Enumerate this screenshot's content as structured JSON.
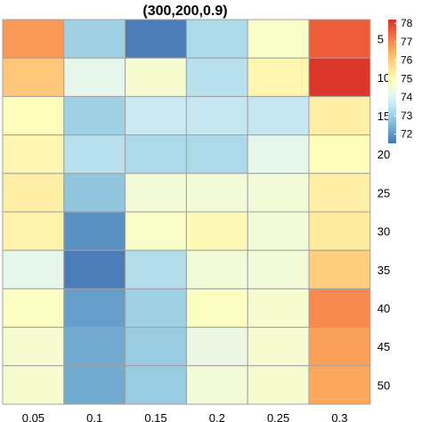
{
  "chart_data": {
    "type": "heatmap",
    "title": "(300,200,0.9)",
    "xlabel": "",
    "ylabel": "",
    "columns": [
      "0.05",
      "0.1",
      "0.15",
      "0.2",
      "0.25",
      "0.3"
    ],
    "rows": [
      "5",
      "10",
      "15",
      "20",
      "25",
      "30",
      "35",
      "40",
      "45",
      "50"
    ],
    "values": [
      [
        76.8,
        73.0,
        71.6,
        73.2,
        74.7,
        77.6
      ],
      [
        76.1,
        74.2,
        74.6,
        73.4,
        75.1,
        78.1
      ],
      [
        74.9,
        73.0,
        73.7,
        73.6,
        73.6,
        75.3
      ],
      [
        75.1,
        73.4,
        73.2,
        73.2,
        74.2,
        74.9
      ],
      [
        75.3,
        72.8,
        74.5,
        74.5,
        74.5,
        75.3
      ],
      [
        75.2,
        71.9,
        74.7,
        75.0,
        74.5,
        75.4
      ],
      [
        74.2,
        71.6,
        73.3,
        74.5,
        74.5,
        76.0
      ],
      [
        74.8,
        72.1,
        73.0,
        74.8,
        74.6,
        77.0
      ],
      [
        74.6,
        72.3,
        72.9,
        74.3,
        74.6,
        76.7
      ],
      [
        74.6,
        72.3,
        72.9,
        74.5,
        74.6,
        76.6
      ]
    ],
    "legend": {
      "min": 71.5,
      "max": 78.2,
      "ticks": [
        72,
        73,
        74,
        75,
        76,
        77,
        78
      ]
    },
    "colors": [
      "#4575b4",
      "#74add1",
      "#abd9e9",
      "#e0f3f8",
      "#ffffbf",
      "#fee090",
      "#fdae61",
      "#f46d43",
      "#d73027"
    ],
    "grid_color": "#a0a0a0"
  }
}
